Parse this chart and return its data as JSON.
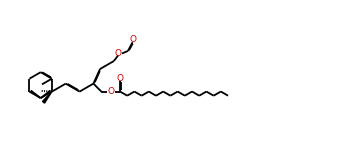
{
  "bg_color": "#ffffff",
  "line_color": "#000000",
  "o_color": "#cc0000",
  "line_width": 1.3,
  "dbo": 0.018,
  "figsize": [
    3.63,
    1.68
  ],
  "dpi": 100,
  "xlim": [
    0.0,
    9.5
  ],
  "ylim": [
    1.5,
    4.2
  ]
}
